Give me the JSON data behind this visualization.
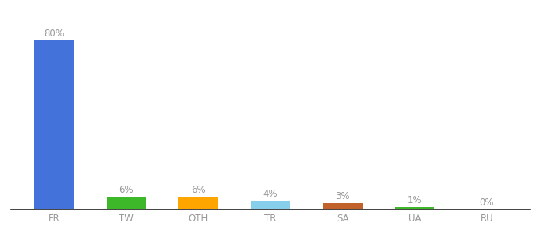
{
  "categories": [
    "FR",
    "TW",
    "OTH",
    "TR",
    "SA",
    "UA",
    "RU"
  ],
  "values": [
    80,
    6,
    6,
    4,
    3,
    1,
    0
  ],
  "bar_colors": [
    "#4472db",
    "#3cb828",
    "#ffa500",
    "#87ceeb",
    "#c0622a",
    "#3cb828",
    "#cccccc"
  ],
  "labels": [
    "80%",
    "6%",
    "6%",
    "4%",
    "3%",
    "1%",
    "0%"
  ],
  "background_color": "#ffffff",
  "ylim": [
    0,
    90
  ],
  "label_fontsize": 8.5,
  "tick_fontsize": 8.5,
  "bar_width": 0.55
}
